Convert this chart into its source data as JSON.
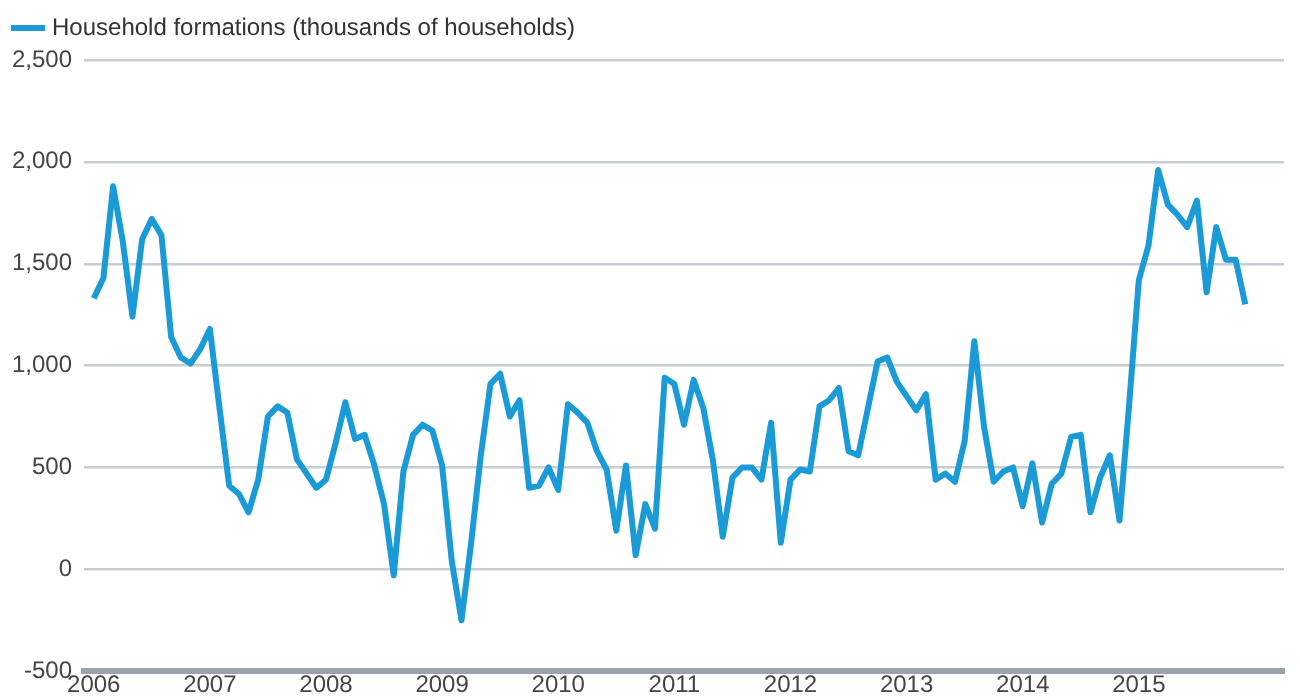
{
  "chart_data": {
    "type": "line",
    "x": [
      "2006-01",
      "2006-02",
      "2006-03",
      "2006-04",
      "2006-05",
      "2006-06",
      "2006-07",
      "2006-08",
      "2006-09",
      "2006-10",
      "2006-11",
      "2006-12",
      "2007-01",
      "2007-02",
      "2007-03",
      "2007-04",
      "2007-05",
      "2007-06",
      "2007-07",
      "2007-08",
      "2007-09",
      "2007-10",
      "2007-11",
      "2007-12",
      "2008-01",
      "2008-02",
      "2008-03",
      "2008-04",
      "2008-05",
      "2008-06",
      "2008-07",
      "2008-08",
      "2008-09",
      "2008-10",
      "2008-11",
      "2008-12",
      "2009-01",
      "2009-02",
      "2009-03",
      "2009-04",
      "2009-05",
      "2009-06",
      "2009-07",
      "2009-08",
      "2009-09",
      "2009-10",
      "2009-11",
      "2009-12",
      "2010-01",
      "2010-02",
      "2010-03",
      "2010-04",
      "2010-05",
      "2010-06",
      "2010-07",
      "2010-08",
      "2010-09",
      "2010-10",
      "2010-11",
      "2010-12",
      "2011-01",
      "2011-02",
      "2011-03",
      "2011-04",
      "2011-05",
      "2011-06",
      "2011-07",
      "2011-08",
      "2011-09",
      "2011-10",
      "2011-11",
      "2011-12",
      "2012-01",
      "2012-02",
      "2012-03",
      "2012-04",
      "2012-05",
      "2012-06",
      "2012-07",
      "2012-08",
      "2012-09",
      "2012-10",
      "2012-11",
      "2012-12",
      "2013-01",
      "2013-02",
      "2013-03",
      "2013-04",
      "2013-05",
      "2013-06",
      "2013-07",
      "2013-08",
      "2013-09",
      "2013-10",
      "2013-11",
      "2013-12",
      "2014-01",
      "2014-02",
      "2014-03",
      "2014-04",
      "2014-05",
      "2014-06",
      "2014-07",
      "2014-08",
      "2014-09",
      "2014-10",
      "2014-11",
      "2014-12",
      "2015-01",
      "2015-02",
      "2015-03",
      "2015-04",
      "2015-05",
      "2015-06",
      "2015-07",
      "2015-08",
      "2015-09",
      "2015-10",
      "2015-11",
      "2015-12"
    ],
    "series": [
      {
        "name": "Household formations (thousands of households)",
        "color": "#1a9bd7",
        "values": [
          1330,
          1430,
          1880,
          1610,
          1240,
          1620,
          1720,
          1640,
          1140,
          1040,
          1010,
          1080,
          1180,
          790,
          410,
          370,
          280,
          440,
          750,
          800,
          770,
          540,
          470,
          400,
          440,
          620,
          820,
          640,
          660,
          510,
          320,
          -30,
          480,
          660,
          710,
          680,
          510,
          40,
          -250,
          130,
          560,
          910,
          960,
          750,
          830,
          400,
          410,
          500,
          390,
          810,
          770,
          720,
          580,
          490,
          190,
          510,
          70,
          320,
          200,
          940,
          910,
          710,
          930,
          790,
          530,
          160,
          450,
          500,
          500,
          440,
          720,
          130,
          440,
          490,
          480,
          800,
          830,
          890,
          580,
          560,
          790,
          1020,
          1040,
          920,
          850,
          780,
          860,
          440,
          470,
          430,
          630,
          1120,
          700,
          430,
          480,
          500,
          310,
          520,
          230,
          420,
          470,
          650,
          660,
          280,
          450,
          560,
          240,
          810,
          1420,
          1590,
          1960,
          1790,
          1740,
          1680,
          1810,
          1360,
          1680,
          1520,
          1520,
          1300
        ]
      }
    ],
    "xlim": [
      "2005-12",
      "2016-04"
    ],
    "xticks": [
      "2006",
      "2007",
      "2008",
      "2009",
      "2010",
      "2011",
      "2012",
      "2013",
      "2014",
      "2015"
    ],
    "ylim": [
      -500,
      2500
    ],
    "yticks": [
      {
        "value": -500,
        "label": "-500"
      },
      {
        "value": 0,
        "label": "0"
      },
      {
        "value": 500,
        "label": "500"
      },
      {
        "value": 1000,
        "label": "1,000"
      },
      {
        "value": 1500,
        "label": "1,500"
      },
      {
        "value": 2000,
        "label": "2,000"
      },
      {
        "value": 2500,
        "label": "2,500"
      }
    ],
    "grid": "y",
    "legend": "top left",
    "marker": "none",
    "line_style": "solid"
  }
}
